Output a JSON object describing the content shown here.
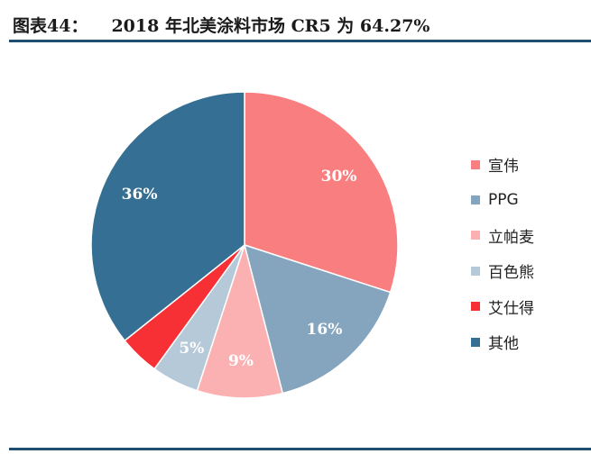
{
  "header": {
    "figure_number": "图表44：",
    "title": "2018 年北美涂料市场 CR5 为 64.27%"
  },
  "chart_data": {
    "type": "pie",
    "title": "2018 年北美涂料市场 CR5 为 64.27%",
    "slices": [
      {
        "name": "宣伟",
        "value": 30,
        "label": "30%",
        "color": "#f97e80",
        "label_color": "#ffffff"
      },
      {
        "name": "PPG",
        "value": 16,
        "label": "16%",
        "color": "#85a5be",
        "label_color": "#ffffff"
      },
      {
        "name": "立帕麦",
        "value": 9,
        "label": "9%",
        "color": "#fbb1b1",
        "label_color": "#ffffff"
      },
      {
        "name": "百色熊",
        "value": 5,
        "label": "5%",
        "color": "#b6c9d9",
        "label_color": "#ffffff"
      },
      {
        "name": "艾仕得",
        "value": 4.27,
        "label": "",
        "color": "#f73035",
        "label_color": "#ffffff"
      },
      {
        "name": "其他",
        "value": 35.73,
        "label": "36%",
        "color": "#356f93",
        "label_color": "#ffffff"
      }
    ],
    "legend_position": "right"
  }
}
